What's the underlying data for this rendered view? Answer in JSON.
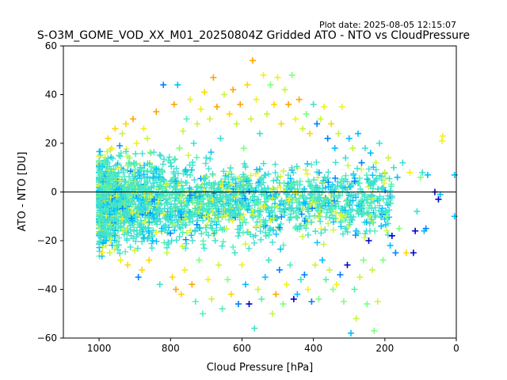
{
  "plot_date": "Plot date: 2025-08-05 12:15:07",
  "colors": {
    "points": [
      "#0000cd",
      "#0080ff",
      "#00bfff",
      "#40e0d0",
      "#55f0b0",
      "#7fff7f",
      "#c8f53c",
      "#f0f020",
      "#ffd700",
      "#ffa500"
    ],
    "zero_line": "#000000"
  },
  "chart_data": {
    "type": "scatter",
    "title": "S-O3M_GOME_VOD_XX_M01_20250804Z Gridded ATO - NTO vs CloudPressure",
    "xlabel": "Cloud Pressure [hPa]",
    "ylabel": "ATO - NTO [DU]",
    "xlim": [
      1100,
      0
    ],
    "ylim": [
      -60,
      60
    ],
    "x_inverted": true,
    "x_ticks": [
      1000,
      800,
      600,
      400,
      200,
      0
    ],
    "y_ticks": [
      -60,
      -40,
      -20,
      0,
      20,
      40,
      60
    ],
    "reference_line_y": 0,
    "marker": "+",
    "grid": false,
    "legend": "none",
    "points": [
      [
        1000,
        5,
        3
      ],
      [
        990,
        -8,
        3
      ],
      [
        985,
        12,
        4
      ],
      [
        980,
        -20,
        2
      ],
      [
        975,
        22,
        8
      ],
      [
        970,
        -25,
        6
      ],
      [
        965,
        18,
        7
      ],
      [
        960,
        -12,
        3
      ],
      [
        955,
        26,
        8
      ],
      [
        950,
        -22,
        4
      ],
      [
        945,
        8,
        3
      ],
      [
        940,
        -28,
        7
      ],
      [
        935,
        24,
        6
      ],
      [
        930,
        -5,
        4
      ],
      [
        925,
        28,
        8
      ],
      [
        920,
        -30,
        8
      ],
      [
        915,
        14,
        5
      ],
      [
        910,
        -18,
        3
      ],
      [
        905,
        30,
        9
      ],
      [
        900,
        -24,
        6
      ],
      [
        895,
        20,
        7
      ],
      [
        890,
        -35,
        1
      ],
      [
        885,
        10,
        3
      ],
      [
        880,
        -32,
        8
      ],
      [
        875,
        26,
        7
      ],
      [
        870,
        -15,
        3
      ],
      [
        865,
        22,
        6
      ],
      [
        860,
        -28,
        8
      ],
      [
        855,
        16,
        4
      ],
      [
        850,
        -20,
        2
      ],
      [
        840,
        33,
        9
      ],
      [
        830,
        -38,
        3
      ],
      [
        820,
        44,
        1
      ],
      [
        810,
        -25,
        6
      ],
      [
        800,
        12,
        3
      ],
      [
        795,
        -35,
        8
      ],
      [
        790,
        36,
        9
      ],
      [
        785,
        -40,
        9
      ],
      [
        780,
        44,
        2
      ],
      [
        775,
        18,
        5
      ],
      [
        770,
        -42,
        8
      ],
      [
        765,
        25,
        6
      ],
      [
        760,
        -32,
        7
      ],
      [
        755,
        30,
        4
      ],
      [
        750,
        -10,
        3
      ],
      [
        745,
        38,
        7
      ],
      [
        740,
        -38,
        9
      ],
      [
        735,
        20,
        3
      ],
      [
        730,
        -45,
        4
      ],
      [
        725,
        28,
        6
      ],
      [
        720,
        -28,
        5
      ],
      [
        715,
        34,
        7
      ],
      [
        710,
        -50,
        4
      ],
      [
        705,
        41,
        8
      ],
      [
        700,
        14,
        3
      ],
      [
        695,
        -36,
        7
      ],
      [
        690,
        30,
        6
      ],
      [
        685,
        -44,
        6
      ],
      [
        680,
        47,
        9
      ],
      [
        675,
        -20,
        3
      ],
      [
        670,
        35,
        9
      ],
      [
        665,
        -30,
        6
      ],
      [
        660,
        22,
        3
      ],
      [
        655,
        -48,
        4
      ],
      [
        650,
        40,
        6
      ],
      [
        645,
        -8,
        3
      ],
      [
        640,
        -36,
        5
      ],
      [
        635,
        32,
        8
      ],
      [
        630,
        -42,
        8
      ],
      [
        625,
        42,
        9
      ],
      [
        620,
        -25,
        3
      ],
      [
        615,
        28,
        6
      ],
      [
        610,
        -46,
        1
      ],
      [
        605,
        36,
        9
      ],
      [
        600,
        -30,
        7
      ],
      [
        595,
        18,
        5
      ],
      [
        590,
        -38,
        2
      ],
      [
        585,
        44,
        8
      ],
      [
        580,
        -46,
        0
      ],
      [
        575,
        30,
        6
      ],
      [
        570,
        54,
        9
      ],
      [
        565,
        -56,
        3
      ],
      [
        560,
        38,
        7
      ],
      [
        555,
        -40,
        6
      ],
      [
        550,
        24,
        3
      ],
      [
        545,
        -44,
        4
      ],
      [
        540,
        48,
        7
      ],
      [
        535,
        -35,
        2
      ],
      [
        530,
        32,
        6
      ],
      [
        525,
        -28,
        3
      ],
      [
        520,
        44,
        5
      ],
      [
        515,
        -50,
        6
      ],
      [
        510,
        36,
        8
      ],
      [
        505,
        -42,
        9
      ],
      [
        500,
        47,
        7
      ],
      [
        495,
        -32,
        1
      ],
      [
        490,
        28,
        8
      ],
      [
        485,
        -46,
        5
      ],
      [
        480,
        42,
        6
      ],
      [
        475,
        -38,
        7
      ],
      [
        470,
        36,
        9
      ],
      [
        465,
        -30,
        4
      ],
      [
        460,
        48,
        5
      ],
      [
        455,
        -44,
        0
      ],
      [
        450,
        30,
        7
      ],
      [
        445,
        -42,
        2
      ],
      [
        440,
        38,
        9
      ],
      [
        435,
        -36,
        3
      ],
      [
        430,
        26,
        6
      ],
      [
        425,
        -34,
        1
      ],
      [
        420,
        32,
        5
      ],
      [
        415,
        -40,
        7
      ],
      [
        410,
        24,
        8
      ],
      [
        405,
        -45,
        1
      ],
      [
        400,
        36,
        3
      ],
      [
        395,
        -30,
        6
      ],
      [
        390,
        28,
        1
      ],
      [
        385,
        -44,
        5
      ],
      [
        380,
        30,
        6
      ],
      [
        375,
        -28,
        2
      ],
      [
        370,
        35,
        7
      ],
      [
        365,
        -36,
        4
      ],
      [
        360,
        22,
        1
      ],
      [
        355,
        -32,
        6
      ],
      [
        350,
        28,
        8
      ],
      [
        345,
        -40,
        5
      ],
      [
        340,
        18,
        2
      ],
      [
        335,
        -38,
        7
      ],
      [
        330,
        24,
        6
      ],
      [
        325,
        -34,
        1
      ],
      [
        320,
        35,
        7
      ],
      [
        315,
        -45,
        5
      ],
      [
        310,
        14,
        3
      ],
      [
        305,
        -30,
        0
      ],
      [
        300,
        22,
        2
      ],
      [
        295,
        -58,
        2
      ],
      [
        290,
        18,
        6
      ],
      [
        285,
        -40,
        4
      ],
      [
        280,
        -52,
        6
      ],
      [
        275,
        24,
        2
      ],
      [
        270,
        -35,
        6
      ],
      [
        265,
        12,
        1
      ],
      [
        260,
        -28,
        5
      ],
      [
        255,
        18,
        3
      ],
      [
        250,
        -46,
        5
      ],
      [
        245,
        -20,
        0
      ],
      [
        240,
        16,
        2
      ],
      [
        235,
        -32,
        6
      ],
      [
        230,
        -57,
        5
      ],
      [
        225,
        12,
        6
      ],
      [
        220,
        -45,
        6
      ],
      [
        215,
        20,
        3
      ],
      [
        210,
        -14,
        2
      ],
      [
        205,
        -28,
        5
      ],
      [
        200,
        8,
        6
      ],
      [
        195,
        -10,
        5
      ],
      [
        190,
        14,
        6
      ],
      [
        185,
        -22,
        2
      ],
      [
        180,
        -18,
        0
      ],
      [
        175,
        10,
        3
      ],
      [
        170,
        -25,
        1
      ],
      [
        165,
        6,
        2
      ],
      [
        160,
        -15,
        5
      ],
      [
        150,
        12,
        3
      ],
      [
        140,
        -25,
        8
      ],
      [
        130,
        8,
        7
      ],
      [
        120,
        -25,
        0
      ],
      [
        115,
        -16,
        0
      ],
      [
        110,
        -8,
        3
      ],
      [
        100,
        6,
        5
      ],
      [
        95,
        8,
        3
      ],
      [
        90,
        -16,
        2
      ],
      [
        85,
        -15,
        1
      ],
      [
        80,
        7,
        2
      ],
      [
        60,
        0,
        0
      ],
      [
        50,
        -3,
        0
      ],
      [
        45,
        -1,
        2
      ],
      [
        40,
        21,
        7
      ],
      [
        38,
        23,
        7
      ],
      [
        5,
        7,
        2
      ],
      [
        5,
        -10,
        2
      ]
    ]
  }
}
